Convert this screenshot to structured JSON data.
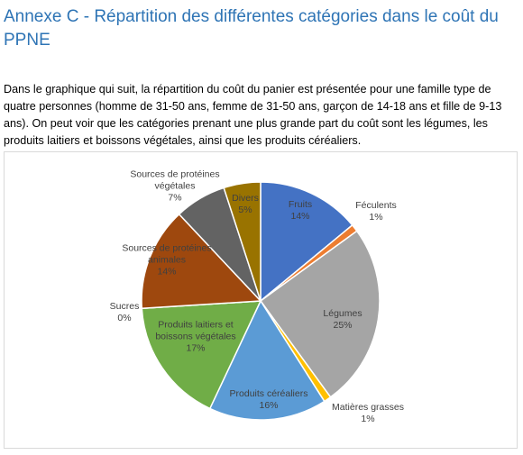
{
  "heading": "Annexe C - Répartition des différentes catégories dans le coût du PPNE",
  "paragraph": "Dans le graphique qui suit, la répartition du coût du panier est présentée pour une famille type de quatre personnes (homme de 31-50 ans, femme de 31-50 ans, garçon de 14-18 ans et fille de 9-13 ans). On peut voir que les catégories prenant une plus grande part du coût sont les légumes, les produits laitiers et boissons végétales, ainsi que les produits céréaliers.",
  "chart_data": {
    "type": "pie",
    "categories": [
      "Fruits",
      "Féculents",
      "Légumes",
      "Matières grasses",
      "Produits céréaliers",
      "Produits laitiers et boissons végétales",
      "Sucres",
      "Sources de protéines animales",
      "Sources de protéines végétales",
      "Divers"
    ],
    "values": [
      14,
      1,
      25,
      1,
      16,
      17,
      0,
      14,
      7,
      5
    ],
    "value_labels": [
      "14%",
      "1%",
      "25%",
      "1%",
      "16%",
      "17%",
      "0%",
      "14%",
      "7%",
      "5%"
    ],
    "colors": [
      "#4472c4",
      "#ed7d31",
      "#a5a5a5",
      "#ffc000",
      "#5b9bd5",
      "#70ad47",
      "#264478",
      "#9e480e",
      "#636363",
      "#997300"
    ]
  }
}
